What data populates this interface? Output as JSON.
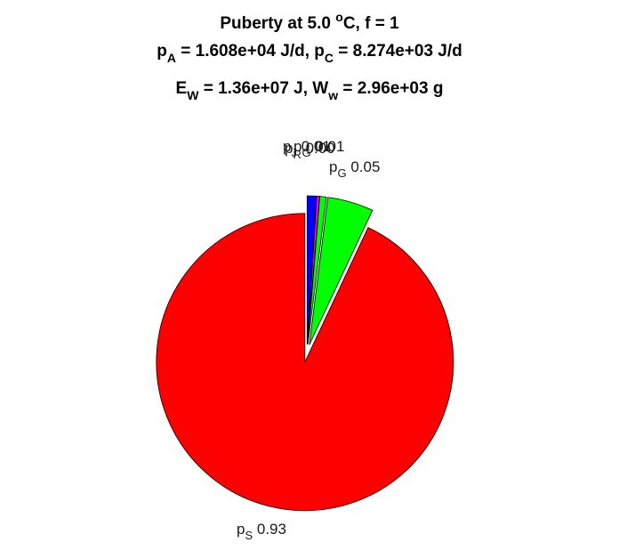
{
  "chart_data": {
    "type": "pie",
    "title": {
      "line1": {
        "prefix": "Puberty at 5.0 ",
        "sup": "o",
        "suffix": "C, f = 1"
      },
      "line2": {
        "a_main": "p",
        "a_sub": "A",
        "a_val": " = 1.608e+04 J/d,  ",
        "c_main": "p",
        "c_sub": "C",
        "c_val": " = 8.274e+03 J/d"
      },
      "line3": {
        "e_main": "E",
        "e_sub": "W",
        "e_val": " = 1.36e+07 J, ",
        "w_main": "W",
        "w_sub": "w",
        "w_val": " = 2.96e+03 g"
      }
    },
    "slices": [
      {
        "sub": "J",
        "label_value": "0.01",
        "value": 0.01,
        "color": "#0000ff",
        "explode": true
      },
      {
        "sub": "R",
        "label_value": "0.00",
        "value": 0.003,
        "color": "#ff00ff",
        "explode": true
      },
      {
        "sub": "G",
        "label_value": "0.01",
        "value": 0.007,
        "color": "#00ff00",
        "explode": true
      },
      {
        "sub": "G",
        "label_value": "0.05",
        "value": 0.05,
        "color": "#00ff00",
        "explode": true
      },
      {
        "sub": "S",
        "label_value": "0.93",
        "value": 0.93,
        "color": "#ff0000",
        "explode": true
      }
    ],
    "label_prefix": "p"
  }
}
